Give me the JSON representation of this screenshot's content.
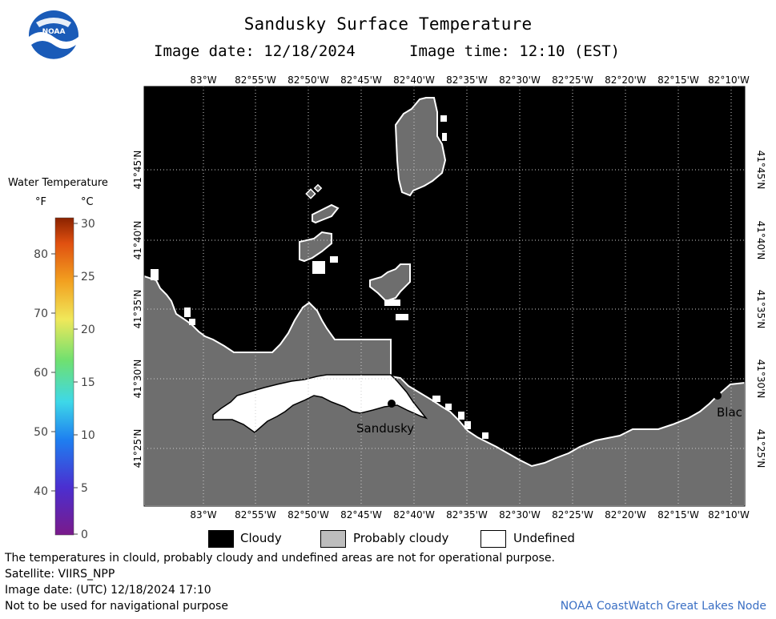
{
  "header": {
    "title": "Sandusky Surface Temperature",
    "image_date": "Image date: 12/18/2024",
    "image_time": "Image time: 12:10 (EST)"
  },
  "map": {
    "lon_labels": [
      "83°W",
      "82°55'W",
      "82°50'W",
      "82°45'W",
      "82°40'W",
      "82°35'W",
      "82°30'W",
      "82°25'W",
      "82°20'W",
      "82°15'W",
      "82°10'W"
    ],
    "lat_labels": [
      "41°45'N",
      "41°40'N",
      "41°35'N",
      "41°30'N",
      "41°25'N"
    ],
    "places": [
      "Sandusky",
      "Blac"
    ],
    "colors": {
      "cloudy": "#000000",
      "probably_cloudy": "#6e6e6e",
      "undefined": "#ffffff"
    }
  },
  "scale": {
    "title": "Water Temperature",
    "unit_f": "°F",
    "unit_c": "°C",
    "f_ticks": [
      "80",
      "70",
      "60",
      "50",
      "40"
    ],
    "c_ticks": [
      "30",
      "25",
      "20",
      "15",
      "10",
      "5",
      "0"
    ]
  },
  "legend": {
    "cloudy": "Cloudy",
    "probably_cloudy": "Probably cloudy",
    "undefined": "Undefined"
  },
  "footer": {
    "disclaimer": "The temperatures in clould, probably cloudy and undefined areas are not for operational purpose.",
    "satellite": "Satellite: VIIRS_NPP",
    "utc_date": "Image date: (UTC) 12/18/2024  17:10",
    "nav_warning": "Not to be used for navigational purpose",
    "credit": "NOAA CoastWatch Great Lakes Node"
  },
  "logo": {
    "text": "NOAA"
  }
}
